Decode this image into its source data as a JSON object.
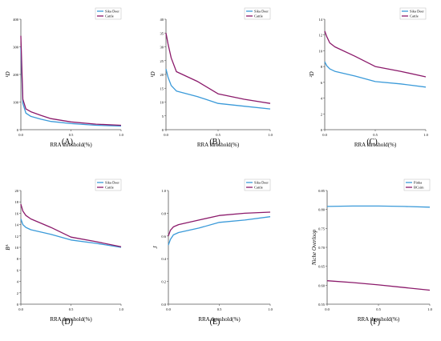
{
  "colors": {
    "blue": "#3a9ad9",
    "purple": "#8b1a6b",
    "axis": "#555555",
    "text": "#000000"
  },
  "chart_data": [
    {
      "panel": "(A)",
      "type": "line",
      "ylabel": "¹D",
      "xlabel": "RRA threshold(%)",
      "xlim": [
        0,
        1
      ],
      "ylim": [
        0,
        400
      ],
      "xticks": [
        "0.0",
        "0.5",
        "1.0"
      ],
      "yticks": [
        "0",
        "100",
        "200",
        "300",
        "400"
      ],
      "grid": false,
      "legend_position": "top-right",
      "series": [
        {
          "name": "Sika Deer",
          "color": "blue",
          "x": [
            0,
            0.02,
            0.05,
            0.1,
            0.2,
            0.3,
            0.5,
            0.75,
            1.0
          ],
          "y": [
            300,
            95,
            60,
            48,
            38,
            30,
            22,
            16,
            13
          ]
        },
        {
          "name": "Cattle",
          "color": "purple",
          "x": [
            0,
            0.02,
            0.05,
            0.1,
            0.2,
            0.3,
            0.5,
            0.75,
            1.0
          ],
          "y": [
            340,
            110,
            75,
            65,
            52,
            40,
            28,
            20,
            16
          ]
        }
      ]
    },
    {
      "panel": "(B)",
      "type": "line",
      "ylabel": "¹D",
      "xlabel": "RRA threshold(%)",
      "xlim": [
        0,
        1
      ],
      "ylim": [
        0,
        40
      ],
      "xticks": [
        "0.0",
        "0.5",
        "1.0"
      ],
      "yticks": [
        "0",
        "5",
        "10",
        "15",
        "20",
        "25",
        "30",
        "35",
        "40"
      ],
      "grid": false,
      "legend_position": "top-right",
      "series": [
        {
          "name": "Sika Deer",
          "color": "blue",
          "x": [
            0,
            0.02,
            0.05,
            0.1,
            0.3,
            0.5,
            0.75,
            1.0
          ],
          "y": [
            22,
            19,
            16,
            14,
            12,
            9.5,
            8.5,
            7.5
          ]
        },
        {
          "name": "Cattle",
          "color": "purple",
          "x": [
            0,
            0.02,
            0.05,
            0.1,
            0.3,
            0.5,
            0.75,
            1.0
          ],
          "y": [
            35,
            31,
            26,
            21,
            17.5,
            13,
            11,
            9.5
          ]
        }
      ]
    },
    {
      "panel": "(C)",
      "type": "line",
      "ylabel": "²D",
      "xlabel": "RRA threshold(%)",
      "xlim": [
        0,
        1
      ],
      "ylim": [
        0,
        14
      ],
      "xticks": [
        "0.0",
        "0.5",
        "1.0"
      ],
      "yticks": [
        "0",
        "2",
        "4",
        "6",
        "8",
        "10",
        "12",
        "14"
      ],
      "grid": false,
      "legend_position": "top-right",
      "series": [
        {
          "name": "Sika Deer",
          "color": "blue",
          "x": [
            0,
            0.02,
            0.05,
            0.1,
            0.3,
            0.5,
            0.75,
            1.0
          ],
          "y": [
            8.6,
            8.1,
            7.7,
            7.4,
            6.8,
            6.1,
            5.8,
            5.4
          ]
        },
        {
          "name": "Cattle",
          "color": "purple",
          "x": [
            0,
            0.02,
            0.05,
            0.1,
            0.3,
            0.5,
            0.75,
            1.0
          ],
          "y": [
            12.5,
            11.8,
            11.0,
            10.5,
            9.3,
            8.0,
            7.4,
            6.7
          ]
        }
      ]
    },
    {
      "panel": "(D)",
      "type": "line",
      "ylabel": "Bᴬ",
      "xlabel": "RRA threshold(%)",
      "xlim": [
        0,
        1
      ],
      "ylim": [
        0,
        20
      ],
      "xticks": [
        "0.0",
        "0.5",
        "1.0"
      ],
      "yticks": [
        "0",
        "2",
        "4",
        "6",
        "8",
        "10",
        "12",
        "14",
        "16",
        "18",
        "20"
      ],
      "grid": false,
      "legend_position": "top-right",
      "series": [
        {
          "name": "Sika Deer",
          "color": "blue",
          "x": [
            0,
            0.02,
            0.05,
            0.1,
            0.3,
            0.5,
            0.75,
            1.0
          ],
          "y": [
            15.0,
            14.0,
            13.5,
            13.1,
            12.3,
            11.3,
            10.7,
            10.0
          ]
        },
        {
          "name": "Cattle",
          "color": "purple",
          "x": [
            0,
            0.02,
            0.05,
            0.1,
            0.3,
            0.5,
            0.75,
            1.0
          ],
          "y": [
            17.6,
            16.4,
            15.6,
            15.0,
            13.5,
            11.8,
            11.0,
            10.1
          ]
        }
      ]
    },
    {
      "panel": "(E)",
      "type": "line",
      "ylabel": "J",
      "xlabel": "RRA threshold(%)",
      "xlim": [
        0,
        1
      ],
      "ylim": [
        0,
        1
      ],
      "xticks": [
        "0.0",
        "0.5",
        "1.0"
      ],
      "yticks": [
        "0.0",
        "0.2",
        "0.4",
        "0.6",
        "0.8",
        "1.0"
      ],
      "grid": false,
      "legend_position": "top-right",
      "series": [
        {
          "name": "Sika Deer",
          "color": "blue",
          "x": [
            0,
            0.02,
            0.05,
            0.1,
            0.3,
            0.5,
            0.75,
            1.0
          ],
          "y": [
            0.52,
            0.57,
            0.61,
            0.63,
            0.67,
            0.72,
            0.74,
            0.77
          ]
        },
        {
          "name": "Cattle",
          "color": "purple",
          "x": [
            0,
            0.02,
            0.05,
            0.1,
            0.3,
            0.5,
            0.75,
            1.0
          ],
          "y": [
            0.6,
            0.65,
            0.68,
            0.7,
            0.74,
            0.78,
            0.8,
            0.81
          ]
        }
      ]
    },
    {
      "panel": "(F)",
      "type": "line",
      "ylabel": "Niche Overloop",
      "xlabel": "RRA threshold(%)",
      "xlim": [
        0,
        1
      ],
      "ylim": [
        0.55,
        0.85
      ],
      "xticks": [
        "0.0",
        "0.5",
        "1.0"
      ],
      "yticks": [
        "0.55",
        "0.60",
        "0.65",
        "0.70",
        "0.75",
        "0.80",
        "0.85"
      ],
      "grid": false,
      "legend_position": "top-right",
      "series": [
        {
          "name": "Pinka",
          "color": "blue",
          "x": [
            0,
            0.25,
            0.5,
            0.75,
            1.0
          ],
          "y": [
            0.808,
            0.809,
            0.809,
            0.808,
            0.806
          ]
        },
        {
          "name": "BCsim",
          "color": "purple",
          "x": [
            0,
            0.25,
            0.5,
            0.75,
            1.0
          ],
          "y": [
            0.612,
            0.607,
            0.601,
            0.594,
            0.587
          ]
        }
      ]
    }
  ]
}
